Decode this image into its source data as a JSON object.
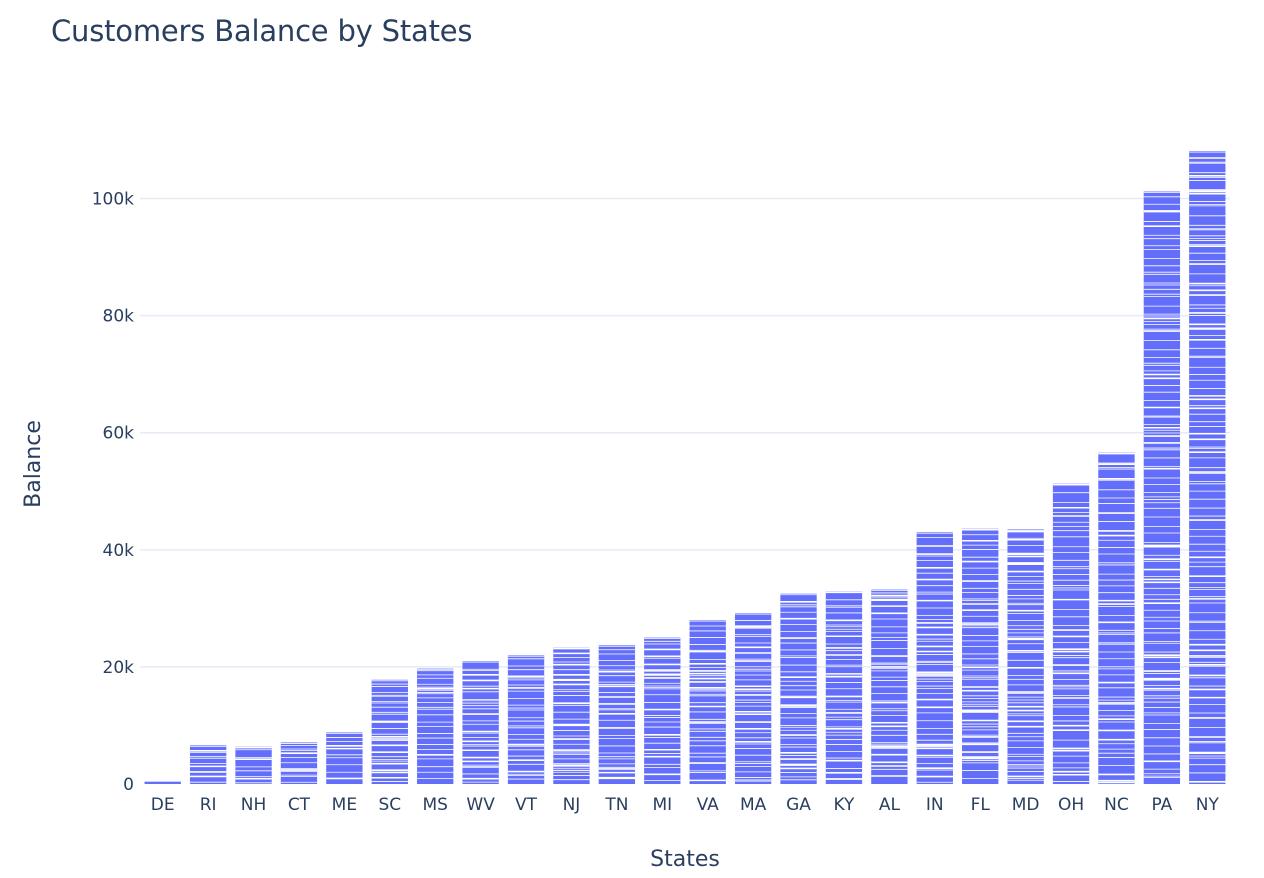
{
  "chart_data": {
    "type": "bar",
    "title": "Customers Balance by States",
    "xlabel": "States",
    "ylabel": "Balance",
    "ylim": [
      0,
      110000
    ],
    "yticks": [
      0,
      20000,
      40000,
      60000,
      80000,
      100000
    ],
    "ytick_labels": [
      "0",
      "20k",
      "40k",
      "60k",
      "80k",
      "100k"
    ],
    "bar_color": "#636efa",
    "segment_line_color": "#ffffff",
    "grid": true,
    "grid_color": "#e5ecf6",
    "legend": false,
    "stacked": true,
    "categories": [
      "DE",
      "RI",
      "NH",
      "CT",
      "ME",
      "SC",
      "MS",
      "WV",
      "VT",
      "NJ",
      "TN",
      "MI",
      "VA",
      "MA",
      "GA",
      "KY",
      "AL",
      "IN",
      "FL",
      "MD",
      "OH",
      "NC",
      "PA",
      "NY"
    ],
    "values": [
      400,
      6600,
      6400,
      7100,
      8800,
      17800,
      19700,
      21000,
      22000,
      23300,
      23700,
      25000,
      28000,
      29200,
      32500,
      32900,
      33200,
      43000,
      43600,
      43500,
      51300,
      56600,
      101200,
      108100
    ]
  }
}
